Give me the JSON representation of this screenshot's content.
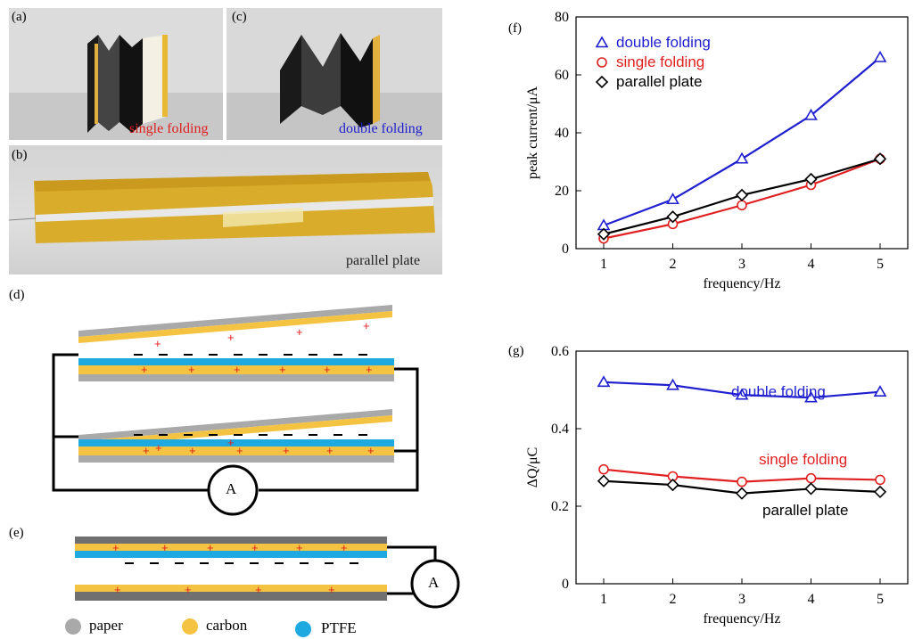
{
  "colors": {
    "paper": "#a9a9a9",
    "carbon": "#f5c342",
    "ptfe": "#1fa9e1",
    "red": "#e02020",
    "blue": "#1f1fd0",
    "black": "#000000"
  },
  "panels": {
    "a": {
      "label": "(a)",
      "caption": "single folding"
    },
    "c": {
      "label": "(c)",
      "caption": "double folding"
    },
    "b": {
      "label": "(b)",
      "caption": "parallel plate"
    },
    "d": {
      "label": "(d)",
      "meter": "A"
    },
    "e": {
      "label": "(e)",
      "meter": "A"
    },
    "f": {
      "label": "(f)"
    },
    "g": {
      "label": "(g)"
    }
  },
  "legend_materials": [
    {
      "name": "paper",
      "color": "#a9a9a9"
    },
    {
      "name": "carbon",
      "color": "#f5c342"
    },
    {
      "name": "PTFE",
      "color": "#1fa9e1"
    }
  ],
  "chart_data": [
    {
      "panel": "f",
      "type": "line",
      "xlabel": "frequency/Hz",
      "ylabel": "peak current/μA",
      "x": [
        1,
        2,
        3,
        4,
        5
      ],
      "xlim": [
        0.6,
        5.4
      ],
      "ylim": [
        0,
        80
      ],
      "yticks": [
        0,
        20,
        40,
        60,
        80
      ],
      "xticks": [
        1,
        2,
        3,
        4,
        5
      ],
      "legend_position": "top-left",
      "series": [
        {
          "name": "double folding",
          "color": "#1f1fd0",
          "marker": "triangle",
          "values": [
            8,
            17,
            31,
            46,
            66
          ]
        },
        {
          "name": "single folding",
          "color": "#e02020",
          "marker": "circle",
          "values": [
            3.5,
            8.5,
            15,
            22,
            31
          ]
        },
        {
          "name": "parallel plate",
          "color": "#000000",
          "marker": "diamond",
          "values": [
            5,
            11,
            18.5,
            24,
            31
          ]
        }
      ]
    },
    {
      "panel": "g",
      "type": "line",
      "xlabel": "frequency/Hz",
      "ylabel": "ΔQ/μC",
      "x": [
        1,
        2,
        3,
        4,
        5
      ],
      "xlim": [
        0.6,
        5.4
      ],
      "ylim": [
        0,
        0.6
      ],
      "yticks": [
        0,
        0.2,
        0.4,
        0.6
      ],
      "ytick_labels": [
        "0",
        "0.2",
        "0.4",
        "0.6"
      ],
      "xticks": [
        1,
        2,
        3,
        4,
        5
      ],
      "series": [
        {
          "name": "double folding",
          "color": "#1f1fd0",
          "marker": "triangle",
          "values": [
            0.52,
            0.512,
            0.487,
            0.48,
            0.495
          ]
        },
        {
          "name": "single folding",
          "color": "#e02020",
          "marker": "circle",
          "values": [
            0.295,
            0.277,
            0.263,
            0.272,
            0.268
          ]
        },
        {
          "name": "parallel plate",
          "color": "#000000",
          "marker": "diamond",
          "values": [
            0.265,
            0.255,
            0.233,
            0.245,
            0.237
          ]
        }
      ]
    }
  ]
}
